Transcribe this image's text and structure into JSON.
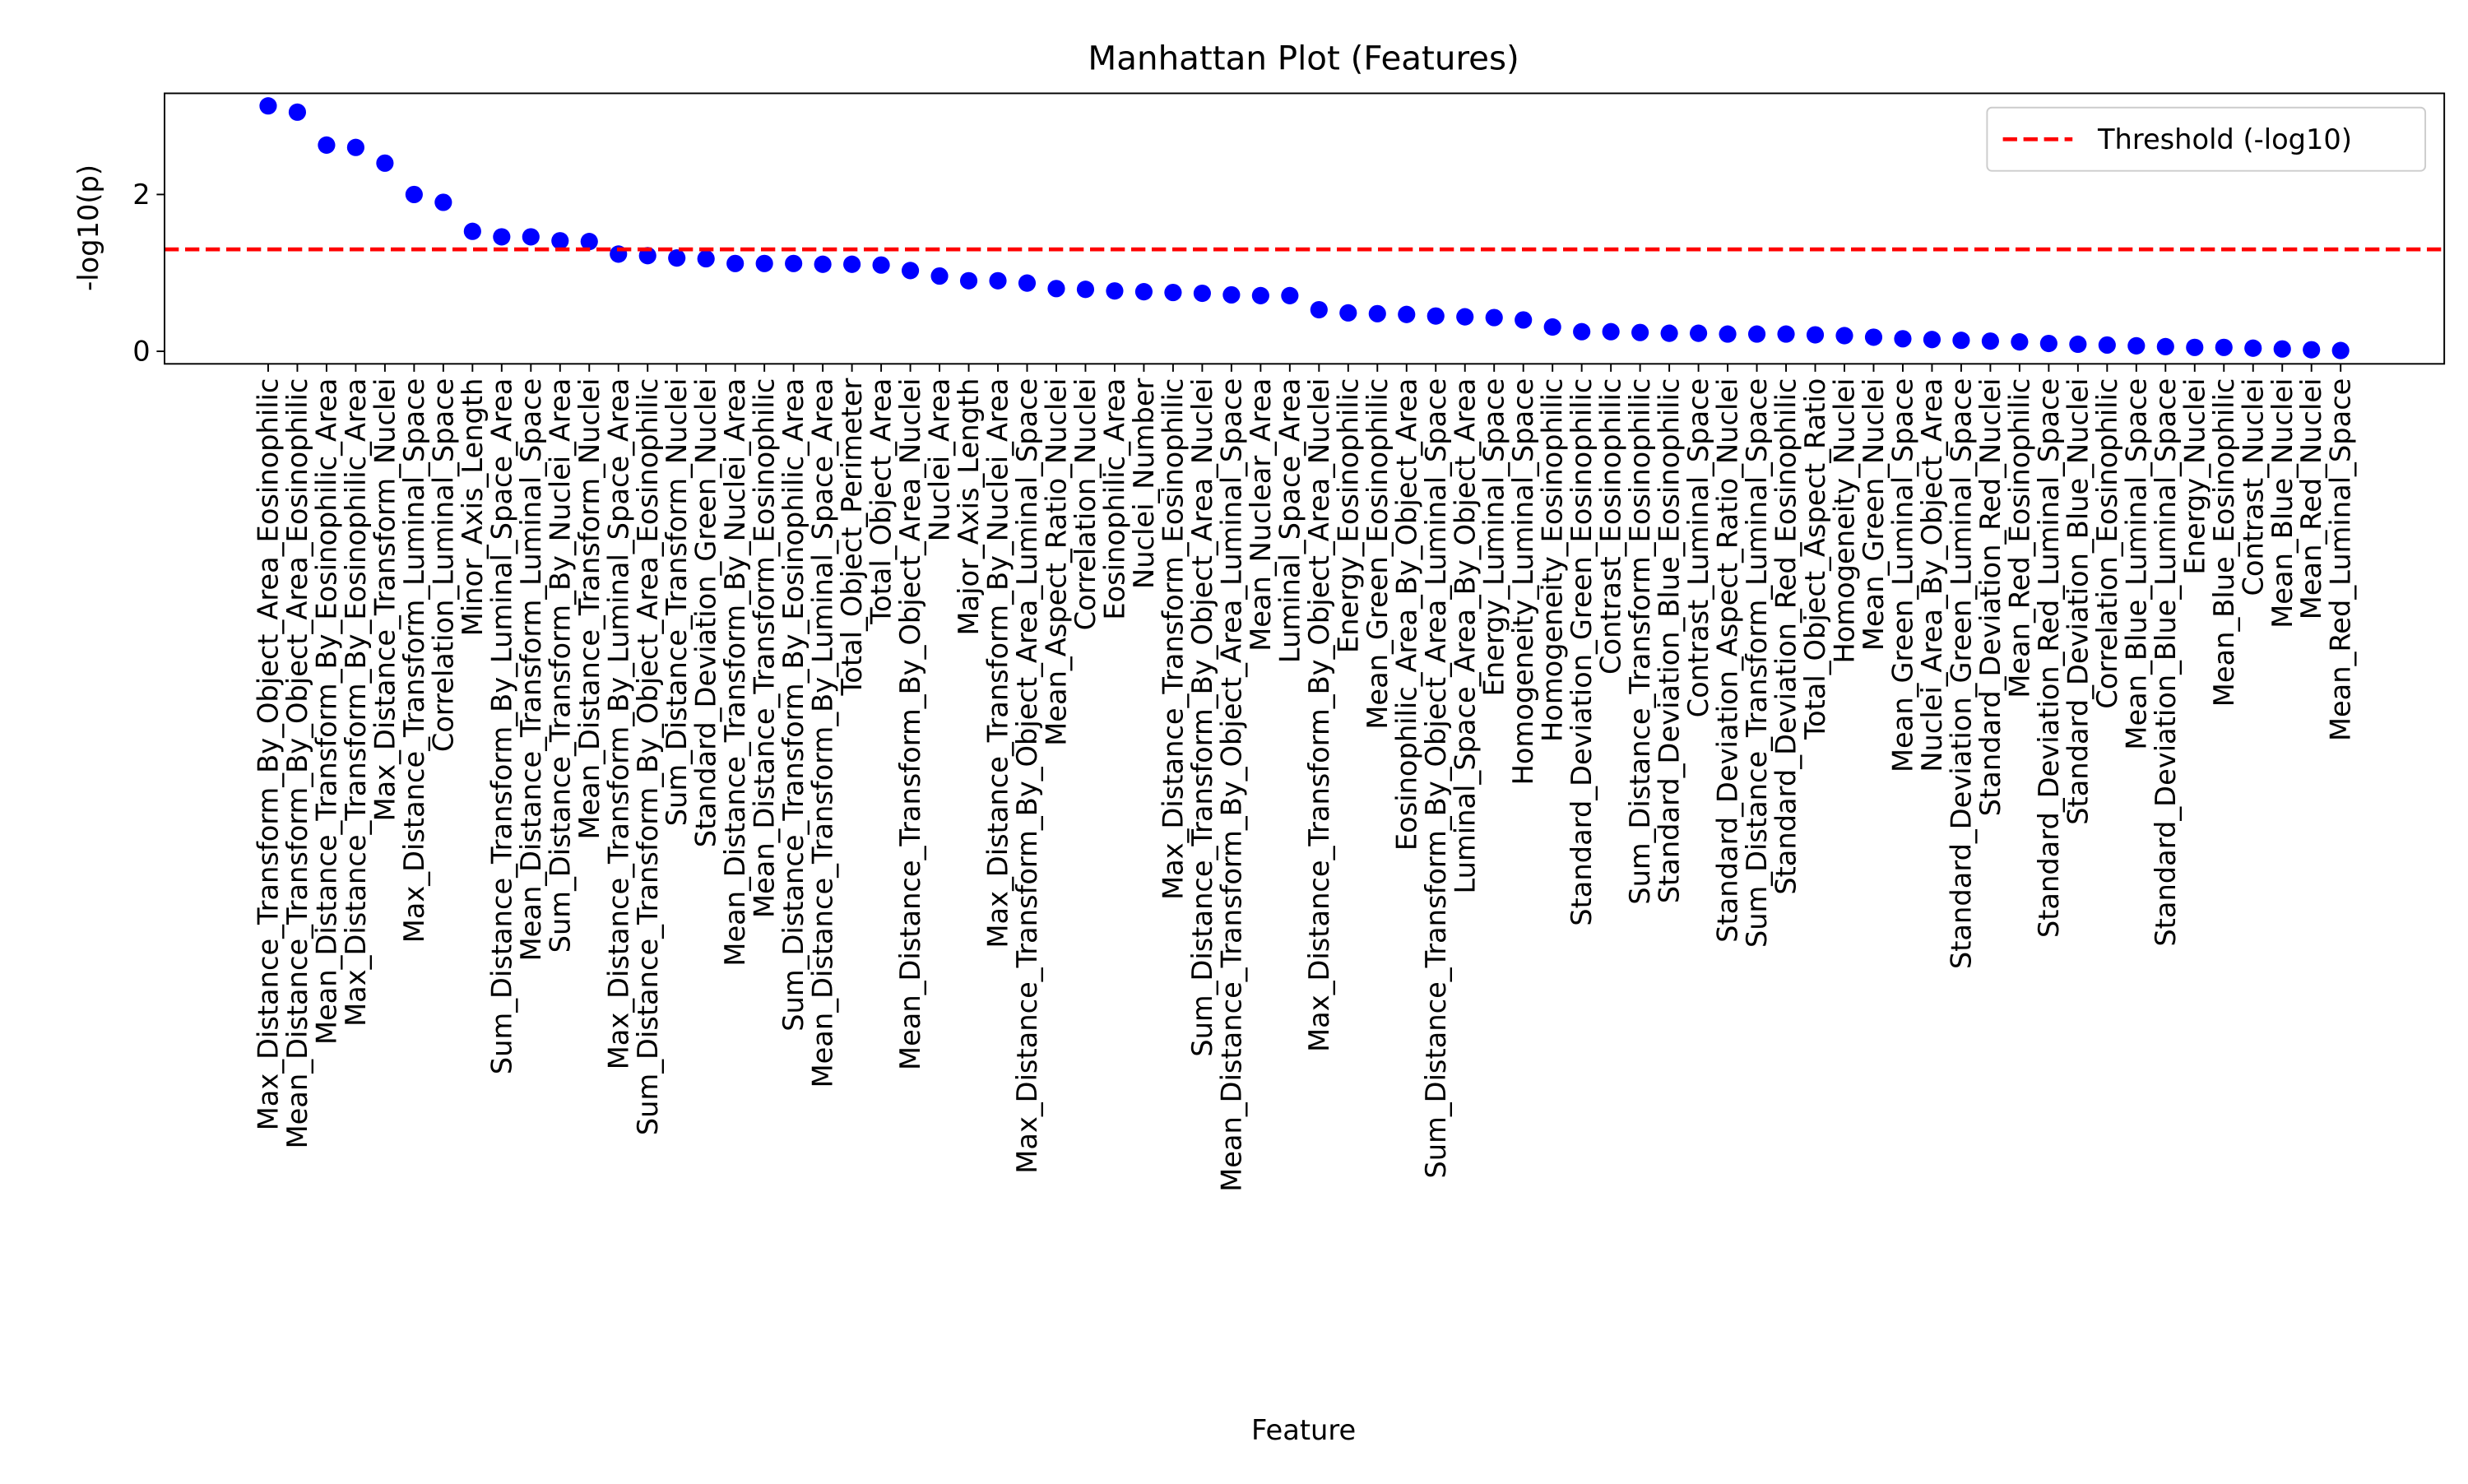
{
  "chart_data": {
    "type": "scatter",
    "title": "Manhattan Plot (Features)",
    "x_label": "Feature",
    "y_label": "-log10(p)",
    "categories": [
      "Max_Distance_Transform_By_Object_Area_Eosinophilic",
      "Mean_Distance_Transform_By_Object_Area_Eosinophilic",
      "Mean_Distance_Transform_By_Eosinophilic_Area",
      "Max_Distance_Transform_By_Eosinophilic_Area",
      "Max_Distance_Transform_Nuclei",
      "Max_Distance_Transform_Luminal_Space",
      "Correlation_Luminal_Space",
      "Minor_Axis_Length",
      "Sum_Distance_Transform_By_Luminal_Space_Area",
      "Mean_Distance_Transform_Luminal_Space",
      "Sum_Distance_Transform_By_Nuclei_Area",
      "Mean_Distance_Transform_Nuclei",
      "Max_Distance_Transform_By_Luminal_Space_Area",
      "Sum_Distance_Transform_By_Object_Area_Eosinophilic",
      "Sum_Distance_Transform_Nuclei",
      "Standard_Deviation_Green_Nuclei",
      "Mean_Distance_Transform_By_Nuclei_Area",
      "Mean_Distance_Transform_Eosinophilic",
      "Sum_Distance_Transform_By_Eosinophilic_Area",
      "Mean_Distance_Transform_By_Luminal_Space_Area",
      "Total_Object_Perimeter",
      "Total_Object_Area",
      "Mean_Distance_Transform_By_Object_Area_Nuclei",
      "Nuclei_Area",
      "Major_Axis_Length",
      "Max_Distance_Transform_By_Nuclei_Area",
      "Max_Distance_Transform_By_Object_Area_Luminal_Space",
      "Mean_Aspect_Ratio_Nuclei",
      "Correlation_Nuclei",
      "Eosinophilic_Area",
      "Nuclei_Number",
      "Max_Distance_Transform_Eosinophilic",
      "Sum_Distance_Transform_By_Object_Area_Nuclei",
      "Mean_Distance_Transform_By_Object_Area_Luminal_Space",
      "Mean_Nuclear_Area",
      "Luminal_Space_Area",
      "Max_Distance_Transform_By_Object_Area_Nuclei",
      "Energy_Eosinophilic",
      "Mean_Green_Eosinophilic",
      "Eosinophilic_Area_By_Object_Area",
      "Sum_Distance_Transform_By_Object_Area_Luminal_Space",
      "Luminal_Space_Area_By_Object_Area",
      "Energy_Luminal_Space",
      "Homogeneity_Luminal_Space",
      "Homogeneity_Eosinophilic",
      "Standard_Deviation_Green_Eosinophilic",
      "Contrast_Eosinophilic",
      "Sum_Distance_Transform_Eosinophilic",
      "Standard_Deviation_Blue_Eosinophilic",
      "Contrast_Luminal_Space",
      "Standard_Deviation_Aspect_Ratio_Nuclei",
      "Sum_Distance_Transform_Luminal_Space",
      "Standard_Deviation_Red_Eosinophilic",
      "Total_Object_Aspect_Ratio",
      "Homogeneity_Nuclei",
      "Mean_Green_Nuclei",
      "Mean_Green_Luminal_Space",
      "Nuclei_Area_By_Object_Area",
      "Standard_Deviation_Green_Luminal_Space",
      "Standard_Deviation_Red_Nuclei",
      "Mean_Red_Eosinophilic",
      "Standard_Deviation_Red_Luminal_Space",
      "Standard_Deviation_Blue_Nuclei",
      "Correlation_Eosinophilic",
      "Mean_Blue_Luminal_Space",
      "Standard_Deviation_Blue_Luminal_Space",
      "Energy_Nuclei",
      "Mean_Blue_Eosinophilic",
      "Contrast_Nuclei",
      "Mean_Blue_Nuclei",
      "Mean_Red_Nuclei",
      "Mean_Red_Luminal_Space"
    ],
    "values": [
      3.13,
      3.05,
      2.63,
      2.6,
      2.4,
      2.0,
      1.9,
      1.53,
      1.46,
      1.46,
      1.41,
      1.4,
      1.24,
      1.22,
      1.19,
      1.18,
      1.12,
      1.12,
      1.12,
      1.11,
      1.11,
      1.1,
      1.03,
      0.96,
      0.9,
      0.9,
      0.87,
      0.8,
      0.79,
      0.77,
      0.76,
      0.75,
      0.74,
      0.72,
      0.71,
      0.71,
      0.53,
      0.49,
      0.48,
      0.47,
      0.45,
      0.44,
      0.43,
      0.4,
      0.31,
      0.25,
      0.25,
      0.24,
      0.23,
      0.23,
      0.22,
      0.22,
      0.22,
      0.21,
      0.2,
      0.18,
      0.16,
      0.15,
      0.14,
      0.13,
      0.12,
      0.1,
      0.09,
      0.08,
      0.07,
      0.06,
      0.05,
      0.05,
      0.04,
      0.03,
      0.02,
      0.01
    ],
    "color": "blue",
    "threshold": {
      "name": "Threshold (-log10)",
      "value": 1.3,
      "color": "red"
    },
    "ylim": [
      -0.16,
      3.29
    ],
    "yticks": [
      0,
      2
    ],
    "legend": "upper right"
  }
}
